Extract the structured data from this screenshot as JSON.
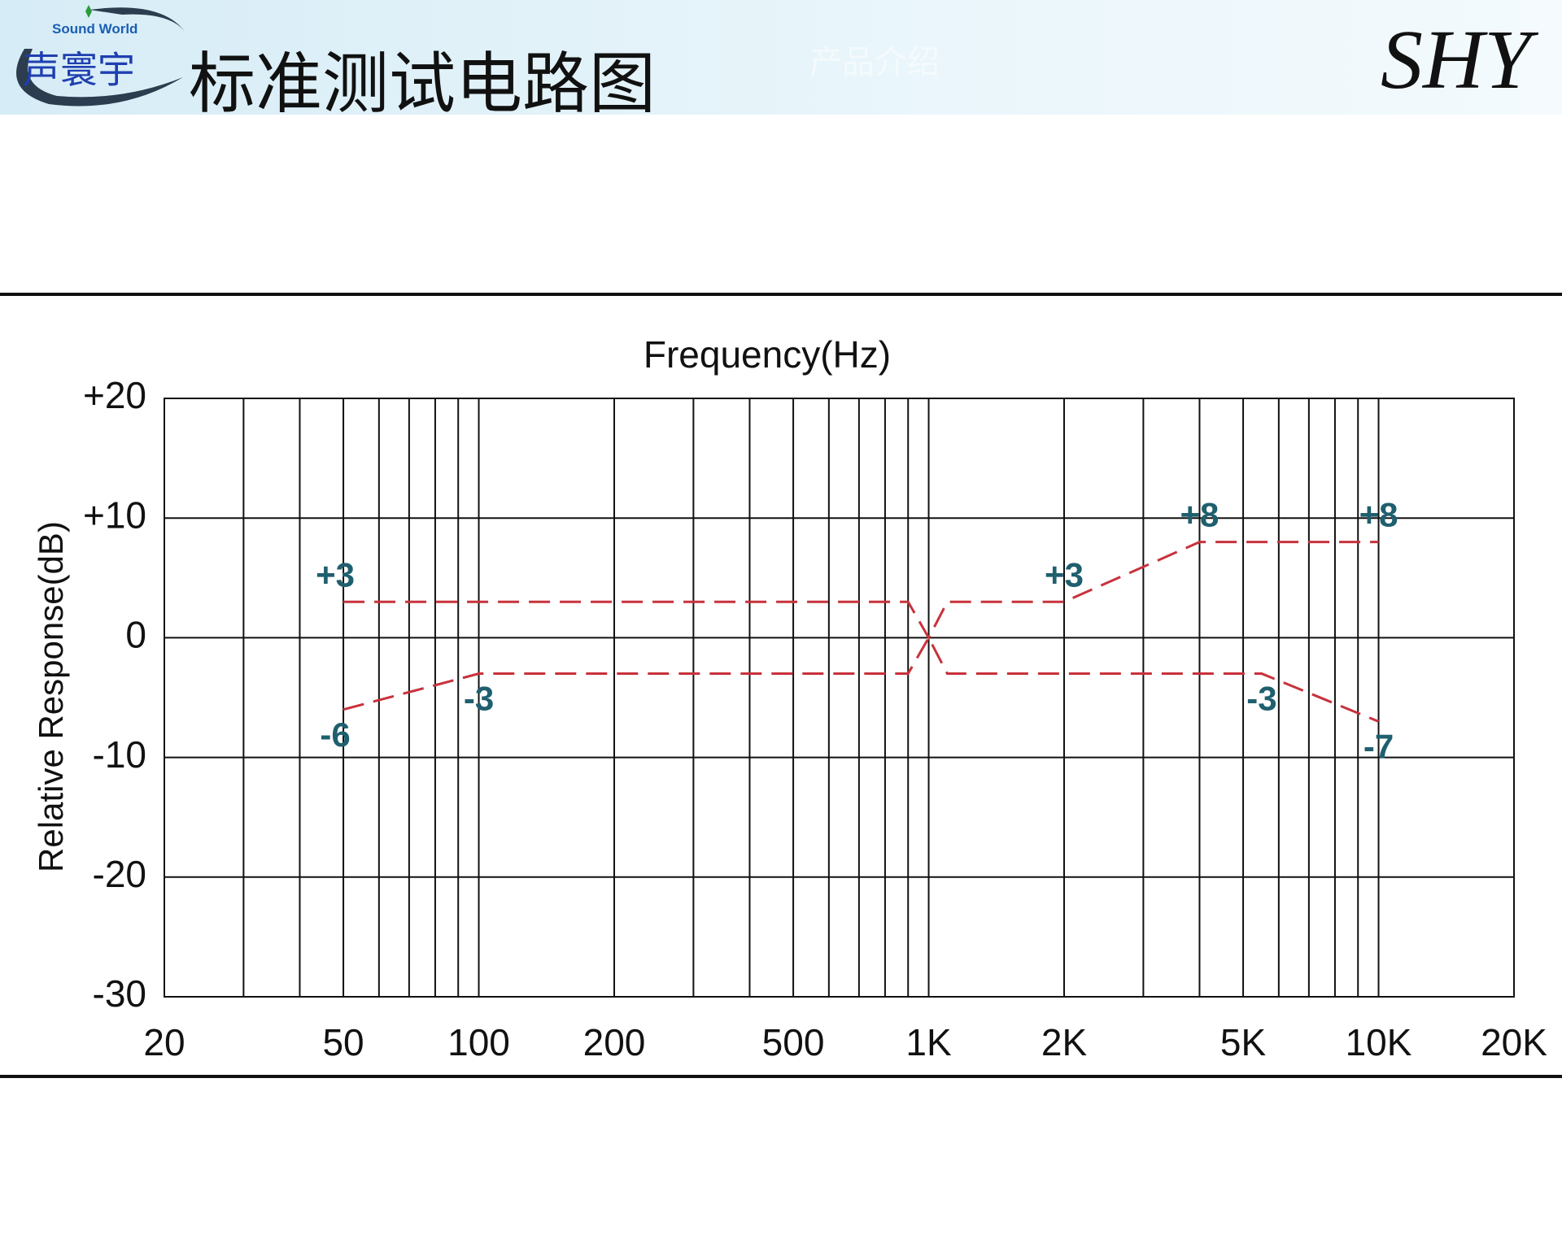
{
  "header": {
    "logo_text": "Sound World",
    "logo_name": "声寰宇",
    "title": "标准测试电路图",
    "watermark": "产品介绍",
    "brand": "SHY"
  },
  "chart_data": {
    "type": "line",
    "title": "Frequency(Hz)",
    "y_label": "Relative Response(dB)",
    "x_scale": "log",
    "xlim": [
      20,
      20000
    ],
    "xticks": [
      20,
      50,
      100,
      200,
      500,
      {
        "value": 1000,
        "label": "1K"
      },
      {
        "value": 2000,
        "label": "2K"
      },
      {
        "value": 5000,
        "label": "5K"
      },
      {
        "value": 10000,
        "label": "10K"
      },
      {
        "value": 20000,
        "label": "20K"
      }
    ],
    "ylim": [
      -30,
      20
    ],
    "yticks": [
      {
        "value": 20,
        "label": "+20"
      },
      {
        "value": 10,
        "label": "+10"
      },
      0,
      -10,
      -20,
      -30
    ],
    "grid": true,
    "minor_grid": true,
    "line_style": "dashed",
    "series": [
      {
        "color": "#c8323c",
        "x": [
          50,
          900,
          1000,
          1100,
          2000,
          4000,
          10000
        ],
        "values": [
          3,
          3,
          0,
          3,
          3,
          8,
          8
        ],
        "value_labels": [
          "+3",
          null,
          null,
          null,
          "+3",
          "+8",
          "+8"
        ]
      },
      {
        "color": "#c8323c",
        "x": [
          50,
          100,
          900,
          1000,
          1100,
          5500,
          10000
        ],
        "values": [
          -6,
          -3,
          -3,
          0,
          -3,
          -3,
          -7
        ],
        "value_labels": [
          "-6",
          "-3",
          null,
          null,
          null,
          "-3",
          "-7"
        ]
      }
    ]
  }
}
